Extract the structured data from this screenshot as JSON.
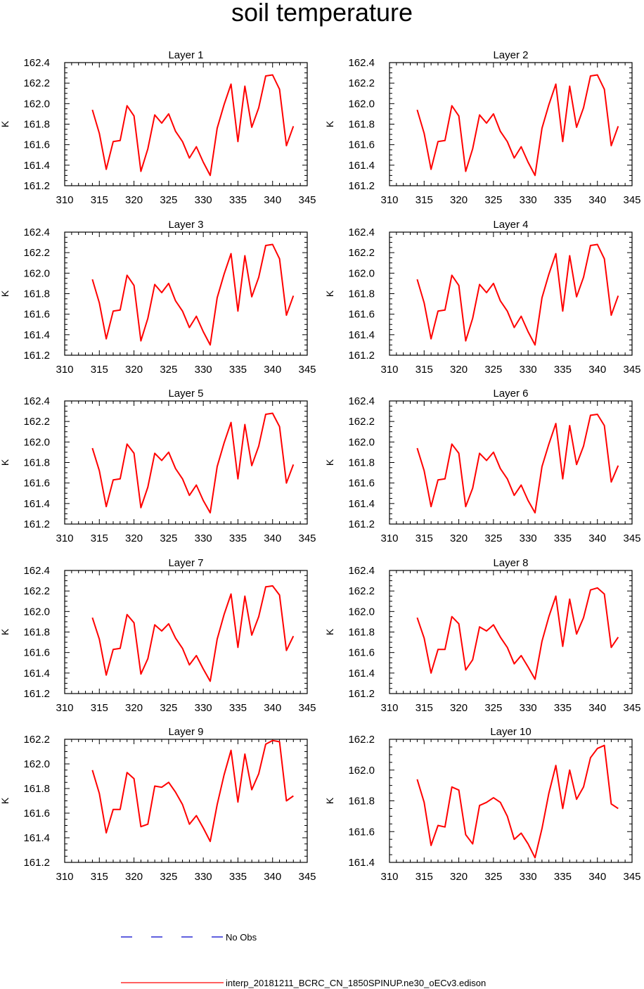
{
  "title": "soil temperature",
  "legend": [
    {
      "label": "No Obs",
      "color": "#0000cc",
      "style": "dashed"
    },
    {
      "label": "interp_20181211_BCRC_CN_1850SPINUP.ne30_oECv3.edison",
      "color": "#ff0000",
      "style": "solid"
    }
  ],
  "chart_data": [
    {
      "type": "line",
      "title": "Layer 1",
      "ylabel": "K",
      "xlim": [
        310,
        345
      ],
      "ylim": [
        161.2,
        162.4
      ],
      "xticks": [
        "310",
        "315",
        "320",
        "325",
        "330",
        "335",
        "340",
        "345"
      ],
      "yticks": [
        "161.2",
        "161.4",
        "161.6",
        "161.8",
        "162.0",
        "162.2",
        "162.4"
      ],
      "x": [
        314,
        315,
        316,
        317,
        318,
        319,
        320,
        321,
        322,
        323,
        324,
        325,
        326,
        327,
        328,
        329,
        330,
        331,
        332,
        333,
        334,
        335,
        336,
        337,
        338,
        339,
        340,
        341,
        342,
        343
      ],
      "series": [
        {
          "name": "interp_20181211_BCRC_CN_1850SPINUP.ne30_oECv3.edison",
          "color": "#ff0000",
          "values": [
            161.94,
            161.71,
            161.36,
            161.63,
            161.64,
            161.98,
            161.88,
            161.34,
            161.56,
            161.89,
            161.81,
            161.9,
            161.73,
            161.63,
            161.47,
            161.58,
            161.43,
            161.3,
            161.76,
            161.99,
            162.19,
            161.63,
            162.17,
            161.77,
            161.96,
            162.27,
            162.28,
            162.14,
            161.59,
            161.78
          ]
        }
      ]
    },
    {
      "type": "line",
      "title": "Layer 2",
      "ylabel": "K",
      "xlim": [
        310,
        345
      ],
      "ylim": [
        161.2,
        162.4
      ],
      "xticks": [
        "310",
        "315",
        "320",
        "325",
        "330",
        "335",
        "340",
        "345"
      ],
      "yticks": [
        "161.2",
        "161.4",
        "161.6",
        "161.8",
        "162.0",
        "162.2",
        "162.4"
      ],
      "x": [
        314,
        315,
        316,
        317,
        318,
        319,
        320,
        321,
        322,
        323,
        324,
        325,
        326,
        327,
        328,
        329,
        330,
        331,
        332,
        333,
        334,
        335,
        336,
        337,
        338,
        339,
        340,
        341,
        342,
        343
      ],
      "series": [
        {
          "name": "interp_20181211_BCRC_CN_1850SPINUP.ne30_oECv3.edison",
          "color": "#ff0000",
          "values": [
            161.94,
            161.71,
            161.36,
            161.63,
            161.64,
            161.98,
            161.88,
            161.34,
            161.56,
            161.89,
            161.81,
            161.9,
            161.73,
            161.63,
            161.47,
            161.58,
            161.43,
            161.3,
            161.76,
            161.99,
            162.19,
            161.63,
            162.17,
            161.77,
            161.96,
            162.27,
            162.28,
            162.14,
            161.59,
            161.78
          ]
        }
      ]
    },
    {
      "type": "line",
      "title": "Layer 3",
      "ylabel": "K",
      "xlim": [
        310,
        345
      ],
      "ylim": [
        161.2,
        162.4
      ],
      "xticks": [
        "310",
        "315",
        "320",
        "325",
        "330",
        "335",
        "340",
        "345"
      ],
      "yticks": [
        "161.2",
        "161.4",
        "161.6",
        "161.8",
        "162.0",
        "162.2",
        "162.4"
      ],
      "x": [
        314,
        315,
        316,
        317,
        318,
        319,
        320,
        321,
        322,
        323,
        324,
        325,
        326,
        327,
        328,
        329,
        330,
        331,
        332,
        333,
        334,
        335,
        336,
        337,
        338,
        339,
        340,
        341,
        342,
        343
      ],
      "series": [
        {
          "name": "interp_20181211_BCRC_CN_1850SPINUP.ne30_oECv3.edison",
          "color": "#ff0000",
          "values": [
            161.94,
            161.71,
            161.36,
            161.63,
            161.64,
            161.98,
            161.88,
            161.34,
            161.56,
            161.89,
            161.81,
            161.9,
            161.73,
            161.63,
            161.47,
            161.58,
            161.43,
            161.3,
            161.76,
            161.99,
            162.19,
            161.63,
            162.17,
            161.77,
            161.96,
            162.27,
            162.28,
            162.14,
            161.59,
            161.78
          ]
        }
      ]
    },
    {
      "type": "line",
      "title": "Layer 4",
      "ylabel": "K",
      "xlim": [
        310,
        345
      ],
      "ylim": [
        161.2,
        162.4
      ],
      "xticks": [
        "310",
        "315",
        "320",
        "325",
        "330",
        "335",
        "340",
        "345"
      ],
      "yticks": [
        "161.2",
        "161.4",
        "161.6",
        "161.8",
        "162.0",
        "162.2",
        "162.4"
      ],
      "x": [
        314,
        315,
        316,
        317,
        318,
        319,
        320,
        321,
        322,
        323,
        324,
        325,
        326,
        327,
        328,
        329,
        330,
        331,
        332,
        333,
        334,
        335,
        336,
        337,
        338,
        339,
        340,
        341,
        342,
        343
      ],
      "series": [
        {
          "name": "interp_20181211_BCRC_CN_1850SPINUP.ne30_oECv3.edison",
          "color": "#ff0000",
          "values": [
            161.94,
            161.71,
            161.36,
            161.63,
            161.64,
            161.98,
            161.88,
            161.34,
            161.56,
            161.89,
            161.81,
            161.9,
            161.73,
            161.63,
            161.47,
            161.58,
            161.43,
            161.3,
            161.76,
            161.99,
            162.19,
            161.63,
            162.17,
            161.77,
            161.96,
            162.27,
            162.28,
            162.14,
            161.59,
            161.78
          ]
        }
      ]
    },
    {
      "type": "line",
      "title": "Layer 5",
      "ylabel": "K",
      "xlim": [
        310,
        345
      ],
      "ylim": [
        161.2,
        162.4
      ],
      "xticks": [
        "310",
        "315",
        "320",
        "325",
        "330",
        "335",
        "340",
        "345"
      ],
      "yticks": [
        "161.2",
        "161.4",
        "161.6",
        "161.8",
        "162.0",
        "162.2",
        "162.4"
      ],
      "x": [
        314,
        315,
        316,
        317,
        318,
        319,
        320,
        321,
        322,
        323,
        324,
        325,
        326,
        327,
        328,
        329,
        330,
        331,
        332,
        333,
        334,
        335,
        336,
        337,
        338,
        339,
        340,
        341,
        342,
        343
      ],
      "series": [
        {
          "name": "interp_20181211_BCRC_CN_1850SPINUP.ne30_oECv3.edison",
          "color": "#ff0000",
          "values": [
            161.94,
            161.72,
            161.37,
            161.63,
            161.64,
            161.98,
            161.89,
            161.36,
            161.56,
            161.89,
            161.82,
            161.9,
            161.74,
            161.64,
            161.48,
            161.58,
            161.43,
            161.31,
            161.76,
            161.99,
            162.19,
            161.64,
            162.17,
            161.77,
            161.96,
            162.27,
            162.28,
            162.15,
            161.6,
            161.78
          ]
        }
      ]
    },
    {
      "type": "line",
      "title": "Layer 6",
      "ylabel": "K",
      "xlim": [
        310,
        345
      ],
      "ylim": [
        161.2,
        162.4
      ],
      "xticks": [
        "310",
        "315",
        "320",
        "325",
        "330",
        "335",
        "340",
        "345"
      ],
      "yticks": [
        "161.2",
        "161.4",
        "161.6",
        "161.8",
        "162.0",
        "162.2",
        "162.4"
      ],
      "x": [
        314,
        315,
        316,
        317,
        318,
        319,
        320,
        321,
        322,
        323,
        324,
        325,
        326,
        327,
        328,
        329,
        330,
        331,
        332,
        333,
        334,
        335,
        336,
        337,
        338,
        339,
        340,
        341,
        342,
        343
      ],
      "series": [
        {
          "name": "interp_20181211_BCRC_CN_1850SPINUP.ne30_oECv3.edison",
          "color": "#ff0000",
          "values": [
            161.94,
            161.72,
            161.37,
            161.63,
            161.64,
            161.98,
            161.89,
            161.37,
            161.55,
            161.89,
            161.82,
            161.9,
            161.74,
            161.64,
            161.48,
            161.58,
            161.43,
            161.31,
            161.76,
            161.98,
            162.18,
            161.64,
            162.16,
            161.78,
            161.96,
            162.26,
            162.27,
            162.16,
            161.61,
            161.77
          ]
        }
      ]
    },
    {
      "type": "line",
      "title": "Layer 7",
      "ylabel": "K",
      "xlim": [
        310,
        345
      ],
      "ylim": [
        161.2,
        162.4
      ],
      "xticks": [
        "310",
        "315",
        "320",
        "325",
        "330",
        "335",
        "340",
        "345"
      ],
      "yticks": [
        "161.2",
        "161.4",
        "161.6",
        "161.8",
        "162.0",
        "162.2",
        "162.4"
      ],
      "x": [
        314,
        315,
        316,
        317,
        318,
        319,
        320,
        321,
        322,
        323,
        324,
        325,
        326,
        327,
        328,
        329,
        330,
        331,
        332,
        333,
        334,
        335,
        336,
        337,
        338,
        339,
        340,
        341,
        342,
        343
      ],
      "series": [
        {
          "name": "interp_20181211_BCRC_CN_1850SPINUP.ne30_oECv3.edison",
          "color": "#ff0000",
          "values": [
            161.94,
            161.73,
            161.38,
            161.63,
            161.64,
            161.97,
            161.89,
            161.39,
            161.54,
            161.87,
            161.81,
            161.88,
            161.74,
            161.64,
            161.48,
            161.57,
            161.44,
            161.32,
            161.73,
            161.97,
            162.17,
            161.65,
            162.15,
            161.77,
            161.95,
            162.24,
            162.25,
            162.16,
            161.62,
            161.76
          ]
        }
      ]
    },
    {
      "type": "line",
      "title": "Layer 8",
      "ylabel": "K",
      "xlim": [
        310,
        345
      ],
      "ylim": [
        161.2,
        162.4
      ],
      "xticks": [
        "310",
        "315",
        "320",
        "325",
        "330",
        "335",
        "340",
        "345"
      ],
      "yticks": [
        "161.2",
        "161.4",
        "161.6",
        "161.8",
        "162.0",
        "162.2",
        "162.4"
      ],
      "x": [
        314,
        315,
        316,
        317,
        318,
        319,
        320,
        321,
        322,
        323,
        324,
        325,
        326,
        327,
        328,
        329,
        330,
        331,
        332,
        333,
        334,
        335,
        336,
        337,
        338,
        339,
        340,
        341,
        342,
        343
      ],
      "series": [
        {
          "name": "interp_20181211_BCRC_CN_1850SPINUP.ne30_oECv3.edison",
          "color": "#ff0000",
          "values": [
            161.94,
            161.74,
            161.4,
            161.63,
            161.63,
            161.95,
            161.88,
            161.43,
            161.53,
            161.85,
            161.81,
            161.87,
            161.75,
            161.65,
            161.49,
            161.57,
            161.46,
            161.34,
            161.71,
            161.95,
            162.15,
            161.66,
            162.12,
            161.78,
            161.94,
            162.21,
            162.23,
            162.17,
            161.65,
            161.75
          ]
        }
      ]
    },
    {
      "type": "line",
      "title": "Layer 9",
      "ylabel": "K",
      "xlim": [
        310,
        345
      ],
      "ylim": [
        161.2,
        162.2
      ],
      "xticks": [
        "310",
        "315",
        "320",
        "325",
        "330",
        "335",
        "340",
        "345"
      ],
      "yticks": [
        "161.2",
        "161.4",
        "161.6",
        "161.8",
        "162.0",
        "162.2"
      ],
      "x": [
        314,
        315,
        316,
        317,
        318,
        319,
        320,
        321,
        322,
        323,
        324,
        325,
        326,
        327,
        328,
        329,
        330,
        331,
        332,
        333,
        334,
        335,
        336,
        337,
        338,
        339,
        340,
        341,
        342,
        343
      ],
      "series": [
        {
          "name": "interp_20181211_BCRC_CN_1850SPINUP.ne30_oECv3.edison",
          "color": "#ff0000",
          "values": [
            161.95,
            161.76,
            161.44,
            161.63,
            161.63,
            161.93,
            161.88,
            161.49,
            161.51,
            161.82,
            161.81,
            161.85,
            161.77,
            161.67,
            161.51,
            161.58,
            161.48,
            161.37,
            161.67,
            161.91,
            162.11,
            161.69,
            162.08,
            161.79,
            161.92,
            162.16,
            162.19,
            162.18,
            161.7,
            161.74
          ]
        }
      ]
    },
    {
      "type": "line",
      "title": "Layer 10",
      "ylabel": "K",
      "xlim": [
        310,
        345
      ],
      "ylim": [
        161.4,
        162.2
      ],
      "xticks": [
        "310",
        "315",
        "320",
        "325",
        "330",
        "335",
        "340",
        "345"
      ],
      "yticks": [
        "161.4",
        "161.6",
        "161.8",
        "162.0",
        "162.2"
      ],
      "x": [
        314,
        315,
        316,
        317,
        318,
        319,
        320,
        321,
        322,
        323,
        324,
        325,
        326,
        327,
        328,
        329,
        330,
        331,
        332,
        333,
        334,
        335,
        336,
        337,
        338,
        339,
        340,
        341,
        342,
        343
      ],
      "series": [
        {
          "name": "interp_20181211_BCRC_CN_1850SPINUP.ne30_oECv3.edison",
          "color": "#ff0000",
          "values": [
            161.94,
            161.79,
            161.51,
            161.64,
            161.63,
            161.89,
            161.87,
            161.58,
            161.52,
            161.77,
            161.79,
            161.82,
            161.79,
            161.7,
            161.55,
            161.59,
            161.52,
            161.43,
            161.62,
            161.85,
            162.03,
            161.75,
            162.0,
            161.81,
            161.89,
            162.08,
            162.14,
            162.16,
            161.78,
            161.75
          ]
        }
      ]
    }
  ]
}
